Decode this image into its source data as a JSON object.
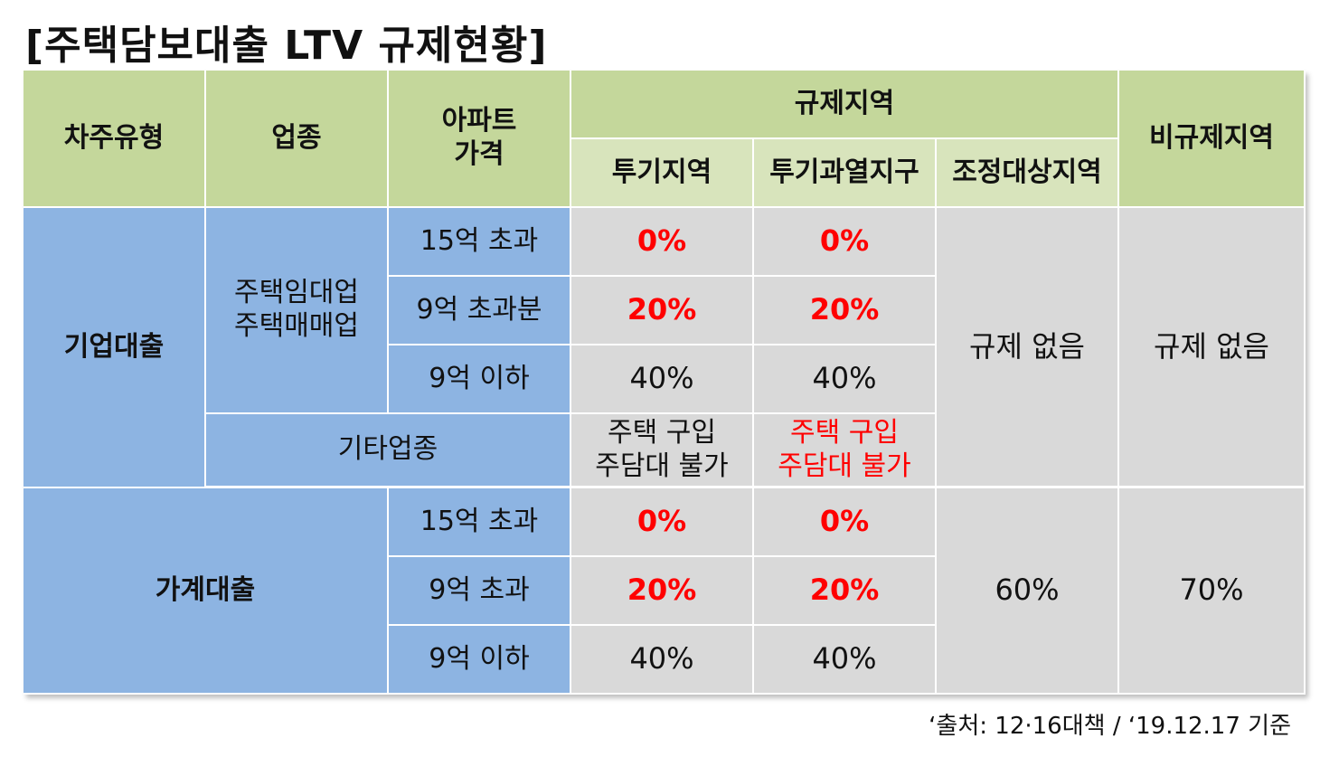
{
  "title": "[주택담보대출 LTV 규제현황]",
  "header": {
    "borrower_type": "차주유형",
    "industry": "업종",
    "apt_price": "아파트\n가격",
    "regulated": "규제지역",
    "speculation": "투기지역",
    "overheated": "투기과열지구",
    "adjustment": "조정대상지역",
    "non_regulated": "비규제지역"
  },
  "corporate": {
    "label": "기업대출",
    "rental_sales": "주택임대업\n주택매매업",
    "rows": [
      {
        "price": "15억 초과",
        "speculation": "0%",
        "overheated": "0%"
      },
      {
        "price": "9억 초과분",
        "speculation": "20%",
        "overheated": "20%"
      },
      {
        "price": "9억 이하",
        "speculation": "40%",
        "overheated": "40%"
      }
    ],
    "other_industry": "기타업종",
    "other_speculation": "주택 구입\n주담대 불가",
    "other_overheated": "주택 구입\n주담대 불가",
    "adjustment": "규제 없음",
    "non_regulated": "규제 없음"
  },
  "household": {
    "label": "가계대출",
    "rows": [
      {
        "price": "15억 초과",
        "speculation": "0%",
        "overheated": "0%"
      },
      {
        "price": "9억 초과",
        "speculation": "20%",
        "overheated": "20%"
      },
      {
        "price": "9억 이하",
        "speculation": "40%",
        "overheated": "40%"
      }
    ],
    "adjustment": "60%",
    "non_regulated": "70%"
  },
  "source": "‘출처: 12·16대책 / ‘19.12.17 기준"
}
